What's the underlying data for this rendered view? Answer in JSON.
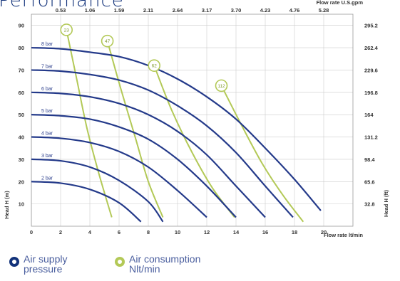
{
  "page": {
    "title": "Performance"
  },
  "chart_data": {
    "type": "line",
    "title": "",
    "xlabel": "Flow rate  lt/min",
    "ylabel": "Head H (m)",
    "x_top_label": "Flow rate U.S.gpm",
    "y_right_label": "Head H (ft)",
    "xlim": [
      0,
      22
    ],
    "ylim": [
      0,
      95
    ],
    "x_ticks": [
      0,
      2,
      4,
      6,
      8,
      10,
      12,
      14,
      16,
      18,
      20
    ],
    "y_ticks": [
      10,
      20,
      30,
      40,
      50,
      60,
      70,
      80,
      90
    ],
    "x_top_ticks": [
      {
        "x": 2,
        "label": "0.53"
      },
      {
        "x": 4,
        "label": "1.06"
      },
      {
        "x": 6,
        "label": "1.59"
      },
      {
        "x": 8,
        "label": "2.11"
      },
      {
        "x": 10,
        "label": "2.64"
      },
      {
        "x": 12,
        "label": "3.17"
      },
      {
        "x": 14,
        "label": "3.70"
      },
      {
        "x": 16,
        "label": "4.23"
      },
      {
        "x": 18,
        "label": "4.76"
      },
      {
        "x": 20,
        "label": "5.28"
      }
    ],
    "y_right_ticks": [
      {
        "y": 10,
        "label": "32.8"
      },
      {
        "y": 20,
        "label": "65.6"
      },
      {
        "y": 30,
        "label": "98.4"
      },
      {
        "y": 40,
        "label": "131.2"
      },
      {
        "y": 50,
        "label": "164"
      },
      {
        "y": 60,
        "label": "196.8"
      },
      {
        "y": 70,
        "label": "229.6"
      },
      {
        "y": 80,
        "label": "262.4"
      },
      {
        "y": 90,
        "label": "295.2"
      }
    ],
    "pressure_series": [
      {
        "name": "2 bar",
        "x": [
          0,
          2,
          4,
          6,
          7.5
        ],
        "y": [
          20,
          19.3,
          16.5,
          10.5,
          2
        ]
      },
      {
        "name": "3 bar",
        "x": [
          0,
          2,
          4,
          6,
          8,
          9
        ],
        "y": [
          30,
          29.3,
          26.5,
          20.5,
          11,
          2
        ]
      },
      {
        "name": "4 bar",
        "x": [
          0,
          2,
          4,
          6,
          8,
          10,
          12
        ],
        "y": [
          40,
          39.4,
          37.5,
          33.5,
          26.5,
          16,
          4
        ]
      },
      {
        "name": "5 bar",
        "x": [
          0,
          2,
          4,
          6,
          8,
          10,
          12,
          14
        ],
        "y": [
          50,
          49.5,
          48,
          44.5,
          39,
          30,
          18,
          4
        ]
      },
      {
        "name": "6 bar",
        "x": [
          0,
          2,
          4,
          6,
          8,
          10,
          12,
          14,
          16
        ],
        "y": [
          60,
          59.5,
          58,
          55,
          50,
          42.5,
          32,
          18,
          4
        ]
      },
      {
        "name": "7 bar",
        "x": [
          0,
          2,
          4,
          6,
          8,
          10,
          12,
          14,
          16,
          17.9
        ],
        "y": [
          70,
          69.5,
          68,
          65.5,
          61,
          54,
          45,
          33,
          18,
          4
        ]
      },
      {
        "name": "8 bar",
        "x": [
          0,
          2,
          4,
          6,
          8,
          10,
          12,
          14,
          16,
          18,
          19.8
        ],
        "y": [
          80,
          79.5,
          78,
          76,
          72,
          66,
          58,
          48,
          35,
          21,
          7
        ]
      }
    ],
    "air_series": [
      {
        "name": "23",
        "label_at": [
          2.4,
          88
        ],
        "x": [
          2.4,
          3.1,
          3.8,
          4.6,
          5.5
        ],
        "y": [
          88,
          66,
          44,
          24,
          4
        ]
      },
      {
        "name": "47",
        "label_at": [
          5.2,
          83
        ],
        "x": [
          5.2,
          6.1,
          7.1,
          8.0,
          9.0
        ],
        "y": [
          83,
          62,
          40,
          20,
          4
        ]
      },
      {
        "name": "62",
        "label_at": [
          8.4,
          72
        ],
        "x": [
          8.4,
          9.6,
          11.0,
          12.4,
          13.9
        ],
        "y": [
          72,
          52,
          33,
          17,
          4
        ]
      },
      {
        "name": "112",
        "label_at": [
          13.0,
          63
        ],
        "x": [
          13.0,
          14.4,
          15.8,
          17.2,
          18.6
        ],
        "y": [
          63,
          45,
          28,
          14,
          2
        ]
      }
    ],
    "colors": {
      "pressure": "#243a8a",
      "air": "#b3c957",
      "grid": "#cccccc"
    },
    "grid": true
  },
  "legend": {
    "supply": "Air supply pressure",
    "air": "Air consumption Nlt/min",
    "supply_color": "#12327a",
    "air_color": "#b3c957"
  }
}
